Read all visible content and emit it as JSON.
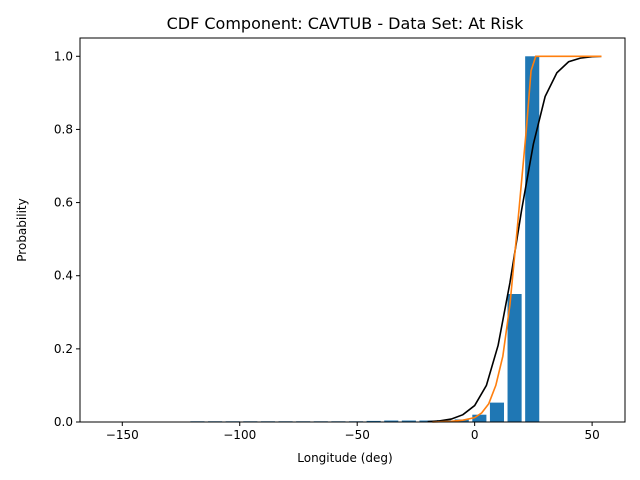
{
  "chart_data": {
    "type": "bar",
    "title": "CDF Component: CAVTUB - Data Set: At Risk",
    "xlabel": "Longitude (deg)",
    "ylabel": "Probability",
    "xlim": [
      -168,
      64
    ],
    "ylim": [
      0,
      1.05
    ],
    "x_ticks": [
      -150,
      -100,
      -50,
      0,
      50
    ],
    "y_ticks": [
      0.0,
      0.2,
      0.4,
      0.6,
      0.8,
      1.0
    ],
    "x_tick_labels": [
      "−150",
      "−100",
      "−50",
      "0",
      "50"
    ],
    "y_tick_labels": [
      "0.0",
      "0.2",
      "0.4",
      "0.6",
      "0.8",
      "1.0"
    ],
    "grid": false,
    "bar_width": 6,
    "bar_color": "#1f77b4",
    "bars": {
      "x": [
        -155.5,
        -148,
        -140.5,
        -133,
        -125.5,
        -118,
        -110.5,
        -103,
        -95.5,
        -88,
        -80.5,
        -73,
        -65.5,
        -58,
        -50.5,
        -43,
        -35.5,
        -28,
        -20.5,
        -13,
        -5.5,
        2,
        9.5,
        17,
        24.5
      ],
      "y": [
        0.001,
        0.001,
        0.001,
        0.001,
        0.001,
        0.002,
        0.002,
        0.002,
        0.002,
        0.002,
        0.002,
        0.002,
        0.002,
        0.002,
        0.002,
        0.003,
        0.004,
        0.004,
        0.004,
        0.005,
        0.007,
        0.02,
        0.053,
        0.35,
        1.0
      ]
    },
    "series": [
      {
        "type": "line",
        "color": "#000000",
        "x": [
          -20,
          -15,
          -10,
          -5,
          0,
          5,
          10,
          15,
          20,
          25,
          30,
          35,
          40,
          45,
          50,
          54
        ],
        "y": [
          0.001,
          0.003,
          0.008,
          0.02,
          0.045,
          0.1,
          0.21,
          0.38,
          0.58,
          0.76,
          0.89,
          0.955,
          0.985,
          0.995,
          0.999,
          1.0
        ]
      },
      {
        "type": "line",
        "color": "#ff7f0e",
        "x": [
          -18,
          -10,
          -5,
          0,
          3,
          6,
          9,
          12,
          15,
          18,
          20,
          22,
          24,
          26,
          54
        ],
        "y": [
          0.0,
          0.002,
          0.005,
          0.012,
          0.025,
          0.05,
          0.1,
          0.18,
          0.32,
          0.52,
          0.66,
          0.8,
          0.96,
          1.0,
          1.0
        ]
      }
    ]
  }
}
